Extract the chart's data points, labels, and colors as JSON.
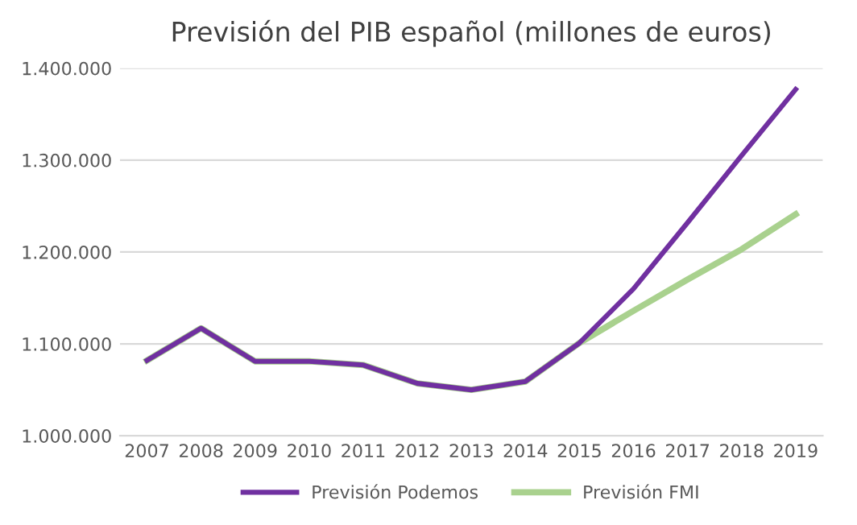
{
  "chart_data": {
    "type": "line",
    "title": "Previsión del PIB español (millones de euros)",
    "categories": [
      "2007",
      "2008",
      "2009",
      "2010",
      "2011",
      "2012",
      "2013",
      "2014",
      "2015",
      "2016",
      "2017",
      "2018",
      "2019"
    ],
    "series": [
      {
        "name": "Previsión Podemos",
        "color": "#7030a0",
        "values": [
          1082000,
          1117000,
          1081000,
          1081000,
          1077000,
          1057000,
          1050000,
          1059000,
          1101000,
          1160000,
          1232000,
          1305000,
          1377000
        ]
      },
      {
        "name": "Previsión FMI",
        "color": "#a9d18e",
        "values": [
          1082000,
          1117000,
          1081000,
          1081000,
          1077000,
          1057000,
          1050000,
          1059000,
          1101000,
          1136000,
          1170000,
          1203000,
          1241000
        ]
      }
    ],
    "ylim": [
      1000000,
      1400000
    ],
    "yticks": [
      {
        "value": 1000000,
        "label": "1.000.000"
      },
      {
        "value": 1100000,
        "label": "1.100.000"
      },
      {
        "value": 1200000,
        "label": "1.200.000"
      },
      {
        "value": 1300000,
        "label": "1.300.000"
      },
      {
        "value": 1400000,
        "label": "1.400.000"
      }
    ],
    "grid": "y",
    "legend": "bottom",
    "marker": "none",
    "line_style": "solid"
  }
}
